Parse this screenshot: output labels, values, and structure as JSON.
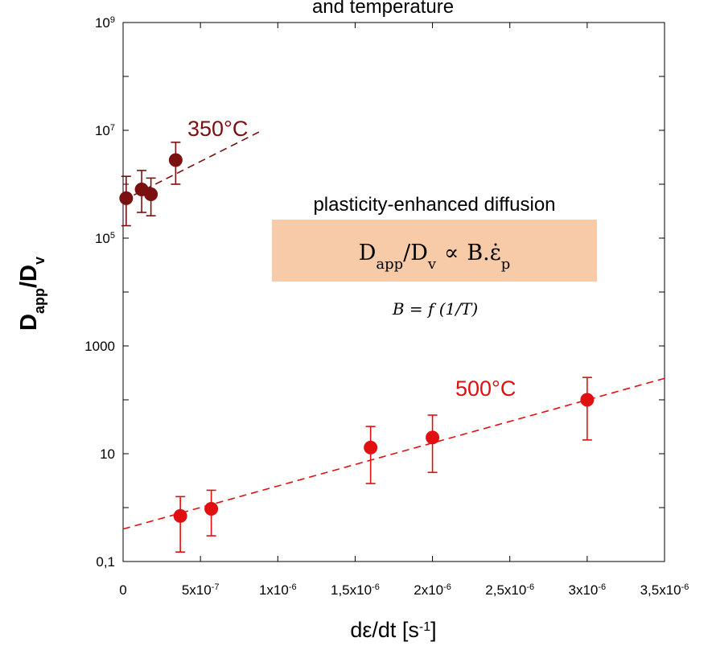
{
  "chart_data": {
    "type": "scatter",
    "title": "and temperature",
    "xlabel": {
      "base": "dε/dt [s",
      "sup": "-1",
      "end": "]"
    },
    "ylabel": {
      "d": "D",
      "sub": "app",
      "mid": "/D",
      "sub2": "v"
    },
    "xlim": [
      0,
      3.5e-06
    ],
    "ylim": [
      0.1,
      1000000000
    ],
    "yscale": "log",
    "x_ticks": [
      {
        "value": 0,
        "base": "0",
        "sup": ""
      },
      {
        "value": 5e-07,
        "base": "5x10",
        "sup": "-7"
      },
      {
        "value": 1e-06,
        "base": "1x10",
        "sup": "-6"
      },
      {
        "value": 1.5e-06,
        "base": "1,5x10",
        "sup": "-6"
      },
      {
        "value": 2e-06,
        "base": "2x10",
        "sup": "-6"
      },
      {
        "value": 2.5e-06,
        "base": "2,5x10",
        "sup": "-6"
      },
      {
        "value": 3e-06,
        "base": "3x10",
        "sup": "-6"
      },
      {
        "value": 3.5e-06,
        "base": "3,5x10",
        "sup": "-6"
      }
    ],
    "y_ticks": [
      {
        "value": 0.1,
        "base": "0,1",
        "sup": ""
      },
      {
        "value": 10,
        "base": "10",
        "sup": ""
      },
      {
        "value": 1000,
        "base": "1000",
        "sup": ""
      },
      {
        "value": 100000,
        "base": "10",
        "sup": "5"
      },
      {
        "value": 10000000,
        "base": "10",
        "sup": "7"
      },
      {
        "value": 1000000000,
        "base": "10",
        "sup": "9"
      }
    ],
    "series": [
      {
        "name": "350°C",
        "color": "#7b1010",
        "points": [
          {
            "x": 2e-08,
            "y": 550000,
            "err_low": 170000,
            "err_high": 1400000
          },
          {
            "x": 1.2e-07,
            "y": 800000,
            "err_low": 300000,
            "err_high": 1800000
          },
          {
            "x": 1.8e-07,
            "y": 650000,
            "err_low": 260000,
            "err_high": 1300000
          },
          {
            "x": 3.4e-07,
            "y": 2800000,
            "err_low": 1000000,
            "err_high": 6000000
          }
        ],
        "fit": {
          "x": [
            0,
            9e-07
          ],
          "y": [
            500000,
            10000000
          ]
        }
      },
      {
        "name": "500°C",
        "color": "#e01010",
        "points": [
          {
            "x": 3.7e-07,
            "y": 0.7,
            "err_low": 0.15,
            "err_high": 1.6
          },
          {
            "x": 5.7e-07,
            "y": 0.95,
            "err_low": 0.3,
            "err_high": 2.1
          },
          {
            "x": 1.6e-06,
            "y": 13,
            "err_low": 2.8,
            "err_high": 32
          },
          {
            "x": 2e-06,
            "y": 20,
            "err_low": 4.5,
            "err_high": 52
          },
          {
            "x": 3e-06,
            "y": 100,
            "err_low": 18,
            "err_high": 260
          }
        ],
        "fit": {
          "x": [
            0,
            3.5e-06
          ],
          "y": [
            0.4,
            250
          ]
        }
      }
    ],
    "annotations": {
      "heading": "plasticity-enhanced diffusion",
      "formula_box_color": "#f8cba8",
      "formula": {
        "d": "D",
        "sub": "app",
        "slash": "/D",
        "sub2": "v",
        "prop": "∝",
        "b": "B",
        "dot": ".",
        "eps": "ε̇",
        "sub3": "p"
      },
      "formula_b": "B = f (1/T)"
    }
  }
}
